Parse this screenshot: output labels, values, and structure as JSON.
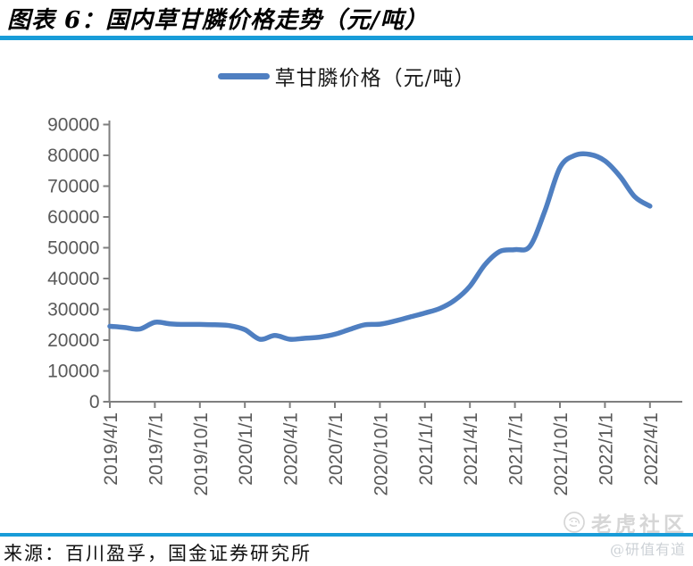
{
  "header": {
    "title": "图表 6：国内草甘膦价格走势（元/吨）"
  },
  "legend": {
    "label": "草甘膦价格（元/吨）"
  },
  "footer": {
    "source": "来源：百川盈孚，国金证券研究所"
  },
  "watermark": {
    "community": "老虎社区",
    "author": "@研值有道"
  },
  "colors": {
    "line": "#4f7fc1",
    "rule": "#189cd8",
    "axis": "#7f7f7f",
    "tick_label": "#595959",
    "watermark": "#d6d6d6"
  },
  "chart_data": {
    "type": "line",
    "title": "国内草甘膦价格走势（元/吨）",
    "series_name": "草甘膦价格（元/吨）",
    "unit": "元/吨",
    "x": [
      "2019/4",
      "2019/5",
      "2019/6",
      "2019/7",
      "2019/8",
      "2019/9",
      "2019/10",
      "2019/11",
      "2019/12",
      "2020/1",
      "2020/2",
      "2020/3",
      "2020/4",
      "2020/5",
      "2020/6",
      "2020/7",
      "2020/8",
      "2020/9",
      "2020/10",
      "2020/11",
      "2020/12",
      "2021/1",
      "2021/2",
      "2021/3",
      "2021/4",
      "2021/5",
      "2021/6",
      "2021/7",
      "2021/8",
      "2021/9",
      "2021/10",
      "2021/11",
      "2021/12",
      "2022/1",
      "2022/2",
      "2022/3",
      "2022/4"
    ],
    "values": [
      24500,
      24100,
      23600,
      25800,
      25300,
      25100,
      25100,
      25000,
      24700,
      23400,
      20300,
      21500,
      20300,
      20600,
      21000,
      21900,
      23500,
      25000,
      25200,
      26200,
      27500,
      28800,
      30300,
      33000,
      37500,
      44500,
      48800,
      49400,
      50500,
      62000,
      76000,
      80000,
      80300,
      78200,
      73200,
      66500,
      63500
    ],
    "x_tick_labels": [
      "2019/4/1",
      "2019/7/1",
      "2019/10/1",
      "2020/1/1",
      "2020/4/1",
      "2020/7/1",
      "2020/10/1",
      "2021/1/1",
      "2021/4/1",
      "2021/7/1",
      "2021/10/1",
      "2022/1/1",
      "2022/4/1"
    ],
    "y_ticks": [
      90000,
      80000,
      70000,
      60000,
      50000,
      40000,
      30000,
      20000,
      10000,
      0
    ],
    "ylim": [
      0,
      90000
    ],
    "grid": false,
    "legend_position": "top"
  }
}
